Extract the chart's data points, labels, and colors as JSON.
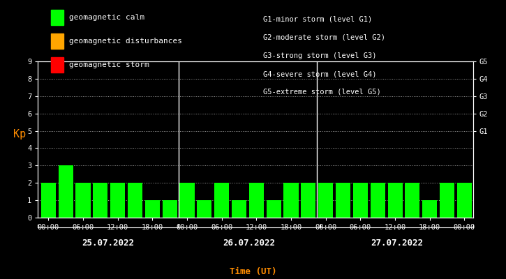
{
  "background_color": "#000000",
  "plot_bg_color": "#000000",
  "bar_color_calm": "#00ff00",
  "bar_color_disturbance": "#ffa500",
  "bar_color_storm": "#ff0000",
  "grid_color": "#ffffff",
  "text_color": "#ffffff",
  "kp_label_color": "#ff8c00",
  "xlabel_color": "#ff8c00",
  "day1_label": "25.07.2022",
  "day2_label": "26.07.2022",
  "day3_label": "27.07.2022",
  "ylabel": "Kp",
  "xlabel": "Time (UT)",
  "ylim": [
    0,
    9
  ],
  "yticks": [
    0,
    1,
    2,
    3,
    4,
    5,
    6,
    7,
    8,
    9
  ],
  "xtick_labels": [
    "00:00",
    "06:00",
    "12:00",
    "18:00",
    "00:00",
    "06:00",
    "12:00",
    "18:00",
    "00:00",
    "06:00",
    "12:00",
    "18:00",
    "00:00"
  ],
  "right_ytick_labels": [
    "G1",
    "G2",
    "G3",
    "G4",
    "G5"
  ],
  "right_ytick_positions": [
    5,
    6,
    7,
    8,
    9
  ],
  "legend_items": [
    {
      "label": "geomagnetic calm",
      "color": "#00ff00"
    },
    {
      "label": "geomagnetic disturbances",
      "color": "#ffa500"
    },
    {
      "label": "geomagnetic storm",
      "color": "#ff0000"
    }
  ],
  "storm_legend": [
    "G1-minor storm (level G1)",
    "G2-moderate storm (level G2)",
    "G3-strong storm (level G3)",
    "G4-severe storm (level G4)",
    "G5-extreme storm (level G5)"
  ],
  "kp_values": [
    2,
    3,
    2,
    2,
    2,
    2,
    1,
    1,
    2,
    1,
    2,
    1,
    2,
    1,
    2,
    2,
    2,
    2,
    2,
    2,
    2,
    2,
    1,
    2,
    2
  ],
  "calm_threshold": 4,
  "disturbance_threshold": 5,
  "bar_width": 0.85,
  "dot_grid_linestyle": ":",
  "dot_grid_linewidth": 0.7,
  "font_family": "monospace",
  "font_size_ticks": 7.5,
  "font_size_legend": 8,
  "font_size_ylabel": 11,
  "font_size_xlabel": 9,
  "font_size_day_labels": 9,
  "font_size_storm_legend": 7.5,
  "font_size_right_ticks": 7.5,
  "divider_color": "#ffffff",
  "divider_linewidth": 1.0,
  "figsize": [
    7.25,
    4.0
  ],
  "dpi": 100
}
